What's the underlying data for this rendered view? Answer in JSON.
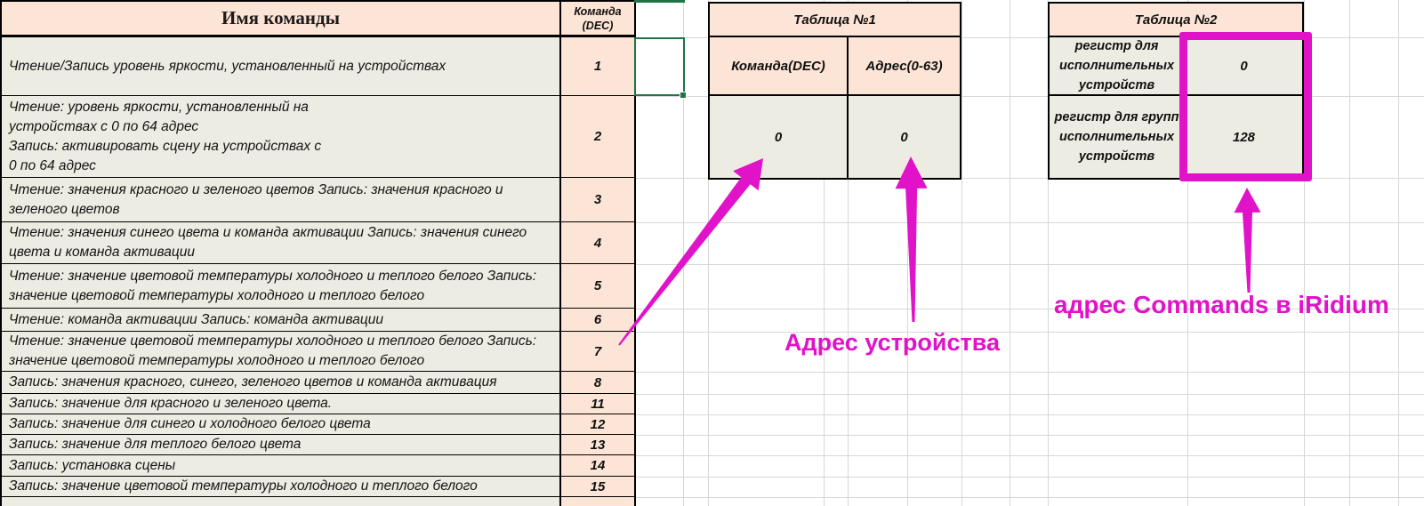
{
  "colors": {
    "annotation_magenta": "#e013c8",
    "selection_green": "#217346",
    "header_peach": "#fce4d6",
    "cell_gray": "#ecece2"
  },
  "left_table": {
    "title": "Имя команды",
    "dec_header_line1": "Команда",
    "dec_header_line2": "(DEC)",
    "rows": [
      {
        "dec": "1",
        "lines": [
          "Чтение/Запись уровень яркости, установленный на устройствах"
        ]
      },
      {
        "dec": "2",
        "lines": [
          "Чтение: уровень яркости, установленный на",
          "устройствах с 0 по 64 адрес",
          "Запись: активировать сцену на устройствах с",
          "0 по 64 адрес"
        ]
      },
      {
        "dec": "3",
        "lines": [
          "Чтение: значения красного и зеленого цветов Запись: значения красного и",
          "зеленого цветов"
        ]
      },
      {
        "dec": "4",
        "lines": [
          "Чтение: значения синего цвета и команда активации Запись: значения синего",
          "цвета и команда активации"
        ]
      },
      {
        "dec": "5",
        "lines": [
          "Чтение: значение цветовой температуры холодного и теплого белого Запись:",
          "значение цветовой температуры холодного и теплого белого"
        ]
      },
      {
        "dec": "6",
        "lines": [
          "Чтение: команда активации Запись: команда активации"
        ]
      },
      {
        "dec": "7",
        "lines": [
          "Чтение: значение цветовой температуры холодного и теплого белого Запись:",
          "значение цветовой температуры холодного и теплого белого"
        ]
      },
      {
        "dec": "8",
        "lines": [
          "Запись: значения красного, синего, зеленого цветов и команда активация"
        ]
      },
      {
        "dec": "11",
        "lines": [
          "Запись: значение для красного и зеленого цвета."
        ]
      },
      {
        "dec": "12",
        "lines": [
          "Запись: значение для синего и холодного белого цвета"
        ]
      },
      {
        "dec": "13",
        "lines": [
          "Запись: значение для теплого белого цвета"
        ]
      },
      {
        "dec": "14",
        "lines": [
          "Запись: установка сцены"
        ]
      },
      {
        "dec": "15",
        "lines": [
          "Запись: значение цветовой температуры холодного и теплого белого"
        ]
      }
    ]
  },
  "table1": {
    "title": "Таблица №1",
    "col1_header": "Команда(DEC)",
    "col2_header": "Адрес(0-63)",
    "col1_value": "0",
    "col2_value": "0"
  },
  "table2": {
    "title": "Таблица №2",
    "rows": [
      {
        "label_lines": [
          "регистр для",
          "исполнительных",
          "устройств"
        ],
        "value": "0"
      },
      {
        "label_lines": [
          "регистр для групп",
          "исполнительных",
          "устройств"
        ],
        "value": "128"
      }
    ]
  },
  "annotations": {
    "device_address_label": "Адрес устройства",
    "iridium_address_label": "адрес Commands в iRidium",
    "arrow1": "arrow-to-command-dec-cell",
    "arrow2": "arrow-to-address-cell",
    "arrow3": "arrow-to-commands-register-values"
  }
}
